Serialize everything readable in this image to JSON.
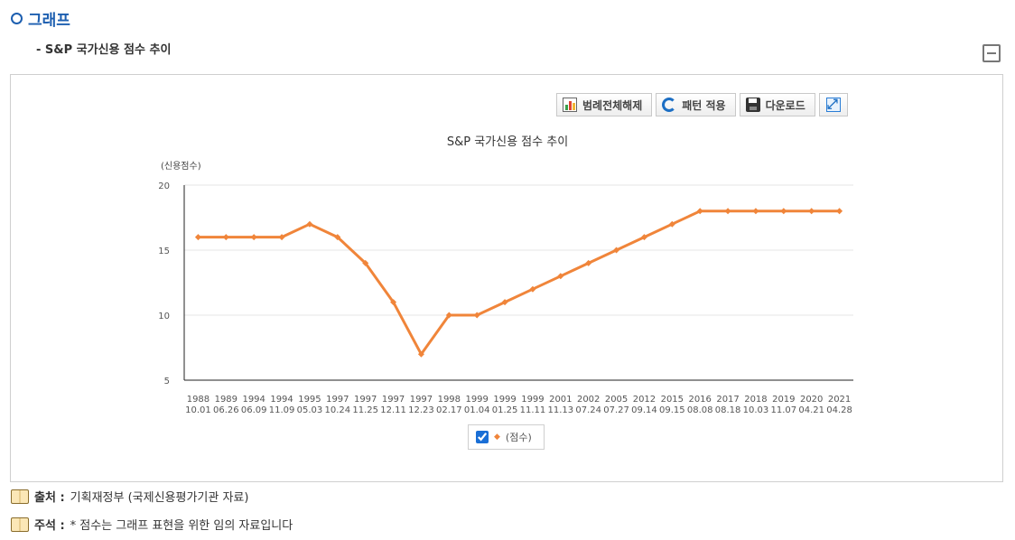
{
  "header": {
    "title": "그래프",
    "subtitle": "- S&P 국가신용 점수 추이"
  },
  "toolbar": {
    "legend_off": "범례전체해제",
    "pattern": "패턴 적용",
    "download": "다운로드"
  },
  "notes": {
    "source_label": "출처 :",
    "source_text": "기획재정부 (국제신용평가기관 자료)",
    "remark_label": "주석 :",
    "remark_text": "* 점수는 그래프 표현을 위한 임의 자료입니다"
  },
  "colors": {
    "accent": "#1d5fb0",
    "series": "#f0853a"
  },
  "chart_data": {
    "type": "line",
    "title": "S&P 국가신용 점수 추이",
    "ylabel": "(신용점수)",
    "xlabel": "",
    "ylim": [
      5,
      20
    ],
    "yticks": [
      5,
      10,
      15,
      20
    ],
    "categories": [
      [
        "1988",
        "10.01"
      ],
      [
        "1989",
        "06.26"
      ],
      [
        "1994",
        "06.09"
      ],
      [
        "1994",
        "11.09"
      ],
      [
        "1995",
        "05.03"
      ],
      [
        "1997",
        "10.24"
      ],
      [
        "1997",
        "11.25"
      ],
      [
        "1997",
        "12.11"
      ],
      [
        "1997",
        "12.23"
      ],
      [
        "1998",
        "02.17"
      ],
      [
        "1999",
        "01.04"
      ],
      [
        "1999",
        "01.25"
      ],
      [
        "1999",
        "11.11"
      ],
      [
        "2001",
        "11.13"
      ],
      [
        "2002",
        "07.24"
      ],
      [
        "2005",
        "07.27"
      ],
      [
        "2012",
        "09.14"
      ],
      [
        "2015",
        "09.15"
      ],
      [
        "2016",
        "08.08"
      ],
      [
        "2017",
        "08.18"
      ],
      [
        "2018",
        "10.03"
      ],
      [
        "2019",
        "11.07"
      ],
      [
        "2020",
        "04.21"
      ],
      [
        "2021",
        "04.28"
      ]
    ],
    "series": [
      {
        "name": "(점수)",
        "values": [
          16,
          16,
          16,
          16,
          17,
          16,
          14,
          11,
          7,
          10,
          10,
          11,
          12,
          13,
          14,
          15,
          16,
          17,
          18,
          18,
          18,
          18,
          18,
          18
        ]
      }
    ],
    "grid": true,
    "legend": "bottom-center"
  }
}
